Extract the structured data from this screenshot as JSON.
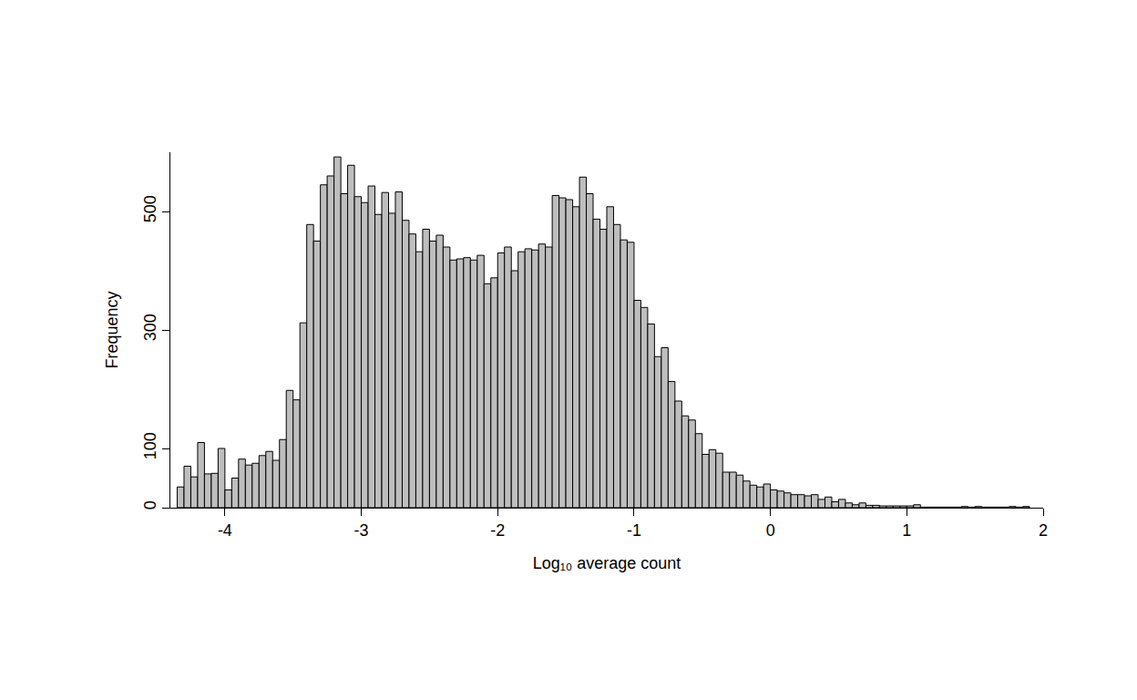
{
  "chart_data": {
    "type": "histogram",
    "x_label": "Log₁₀ average count",
    "y_label": "Frequency",
    "color": "#bebebe",
    "grid": false,
    "xlim": [
      -4.4,
      2.0
    ],
    "ylim": [
      0,
      600
    ],
    "xticks": [
      -4,
      -3,
      -2,
      -1,
      0,
      1,
      2
    ],
    "yticks": [
      0,
      100,
      300,
      500
    ],
    "bins": [
      -4.35,
      -4.3,
      -4.25,
      -4.2,
      -4.15,
      -4.1,
      -4.05,
      -4.0,
      -3.95,
      -3.9,
      -3.85,
      -3.8,
      -3.75,
      -3.7,
      -3.65,
      -3.6,
      -3.55,
      -3.5,
      -3.45,
      -3.4,
      -3.35,
      -3.3,
      -3.25,
      -3.2,
      -3.15,
      -3.1,
      -3.05,
      -3.0,
      -2.95,
      -2.9,
      -2.85,
      -2.8,
      -2.75,
      -2.7,
      -2.65,
      -2.6,
      -2.55,
      -2.5,
      -2.45,
      -2.4,
      -2.35,
      -2.3,
      -2.25,
      -2.2,
      -2.15,
      -2.1,
      -2.05,
      -2.0,
      -1.95,
      -1.9,
      -1.85,
      -1.8,
      -1.75,
      -1.7,
      -1.65,
      -1.6,
      -1.55,
      -1.5,
      -1.45,
      -1.4,
      -1.35,
      -1.3,
      -1.25,
      -1.2,
      -1.15,
      -1.1,
      -1.05,
      -1.0,
      -0.95,
      -0.9,
      -0.85,
      -0.8,
      -0.75,
      -0.7,
      -0.65,
      -0.6,
      -0.55,
      -0.5,
      -0.45,
      -0.4,
      -0.35,
      -0.3,
      -0.25,
      -0.2,
      -0.15,
      -0.1,
      -0.05,
      0.0,
      0.05,
      0.1,
      0.15,
      0.2,
      0.25,
      0.3,
      0.35,
      0.4,
      0.45,
      0.5,
      0.55,
      0.6,
      0.65,
      0.7,
      0.75,
      0.8,
      0.85,
      0.9,
      0.95,
      1.0,
      1.05,
      1.1,
      1.15,
      1.2,
      1.25,
      1.3,
      1.35,
      1.4,
      1.45,
      1.5,
      1.55,
      1.6,
      1.65,
      1.7,
      1.75,
      1.8,
      1.85,
      1.9
    ],
    "values": [
      35,
      70,
      52,
      110,
      57,
      58,
      100,
      30,
      50,
      82,
      72,
      75,
      88,
      95,
      80,
      115,
      198,
      182,
      312,
      478,
      450,
      545,
      560,
      592,
      530,
      578,
      525,
      515,
      543,
      495,
      532,
      497,
      533,
      485,
      462,
      432,
      470,
      450,
      460,
      440,
      418,
      420,
      422,
      418,
      426,
      378,
      388,
      430,
      440,
      400,
      432,
      437,
      435,
      445,
      440,
      527,
      523,
      520,
      508,
      558,
      530,
      487,
      470,
      508,
      478,
      452,
      448,
      350,
      338,
      310,
      255,
      270,
      213,
      180,
      155,
      148,
      125,
      90,
      98,
      92,
      60,
      60,
      55,
      45,
      38,
      35,
      40,
      30,
      28,
      25,
      22,
      22,
      20,
      22,
      14,
      18,
      10,
      14,
      8,
      5,
      8,
      4,
      4,
      3,
      3,
      3,
      3,
      3,
      5,
      1,
      1,
      1,
      1,
      1,
      1,
      2,
      1,
      2,
      1,
      1,
      1,
      1,
      2,
      1,
      2
    ]
  }
}
